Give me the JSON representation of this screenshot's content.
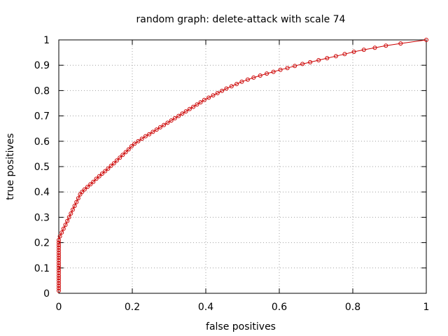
{
  "chart_data": {
    "type": "line",
    "title": "random graph: delete-attack with scale 74",
    "xlabel": "false positives",
    "ylabel": "true positives",
    "xlim": [
      0,
      1
    ],
    "ylim": [
      0,
      1
    ],
    "grid": true,
    "x_ticks": [
      0,
      0.2,
      0.4,
      0.6,
      0.8,
      1
    ],
    "y_ticks": [
      0,
      0.1,
      0.2,
      0.3,
      0.4,
      0.5,
      0.6,
      0.7,
      0.8,
      0.9,
      1
    ],
    "x_tick_labels": [
      "0",
      "0.2",
      "0.4",
      "0.6",
      "0.8",
      "1"
    ],
    "y_tick_labels": [
      "0",
      "0.1",
      "0.2",
      "0.3",
      "0.4",
      "0.5",
      "0.6",
      "0.7",
      "0.8",
      "0.9",
      "1"
    ],
    "series": [
      {
        "color": "#cc0000",
        "marker": "circle",
        "points": [
          [
            0,
            0.01
          ],
          [
            0,
            0.02
          ],
          [
            0,
            0.03
          ],
          [
            0,
            0.04
          ],
          [
            0,
            0.05
          ],
          [
            0,
            0.06
          ],
          [
            0,
            0.07
          ],
          [
            0,
            0.08
          ],
          [
            0,
            0.09
          ],
          [
            0,
            0.1
          ],
          [
            0,
            0.11
          ],
          [
            0,
            0.12
          ],
          [
            0,
            0.13
          ],
          [
            0,
            0.14
          ],
          [
            0,
            0.15
          ],
          [
            0,
            0.16
          ],
          [
            0,
            0.17
          ],
          [
            0,
            0.18
          ],
          [
            0,
            0.19
          ],
          [
            0,
            0.2
          ],
          [
            0,
            0.21
          ],
          [
            0.003,
            0.225
          ],
          [
            0.008,
            0.24
          ],
          [
            0.013,
            0.255
          ],
          [
            0.018,
            0.27
          ],
          [
            0.023,
            0.285
          ],
          [
            0.028,
            0.3
          ],
          [
            0.033,
            0.315
          ],
          [
            0.038,
            0.33
          ],
          [
            0.043,
            0.345
          ],
          [
            0.048,
            0.36
          ],
          [
            0.053,
            0.375
          ],
          [
            0.058,
            0.39
          ],
          [
            0.063,
            0.4
          ],
          [
            0.07,
            0.41
          ],
          [
            0.078,
            0.42
          ],
          [
            0.086,
            0.43
          ],
          [
            0.094,
            0.44
          ],
          [
            0.102,
            0.452
          ],
          [
            0.11,
            0.462
          ],
          [
            0.118,
            0.472
          ],
          [
            0.126,
            0.482
          ],
          [
            0.134,
            0.492
          ],
          [
            0.142,
            0.503
          ],
          [
            0.15,
            0.513
          ],
          [
            0.158,
            0.524
          ],
          [
            0.166,
            0.535
          ],
          [
            0.174,
            0.546
          ],
          [
            0.182,
            0.557
          ],
          [
            0.19,
            0.568
          ],
          [
            0.198,
            0.58
          ],
          [
            0.206,
            0.59
          ],
          [
            0.216,
            0.6
          ],
          [
            0.226,
            0.61
          ],
          [
            0.236,
            0.62
          ],
          [
            0.246,
            0.628
          ],
          [
            0.256,
            0.637
          ],
          [
            0.266,
            0.646
          ],
          [
            0.276,
            0.655
          ],
          [
            0.286,
            0.664
          ],
          [
            0.296,
            0.673
          ],
          [
            0.306,
            0.682
          ],
          [
            0.316,
            0.691
          ],
          [
            0.326,
            0.7
          ],
          [
            0.336,
            0.709
          ],
          [
            0.346,
            0.718
          ],
          [
            0.356,
            0.727
          ],
          [
            0.366,
            0.736
          ],
          [
            0.376,
            0.745
          ],
          [
            0.386,
            0.754
          ],
          [
            0.396,
            0.763
          ],
          [
            0.408,
            0.772
          ],
          [
            0.42,
            0.781
          ],
          [
            0.432,
            0.79
          ],
          [
            0.444,
            0.799
          ],
          [
            0.456,
            0.808
          ],
          [
            0.47,
            0.817
          ],
          [
            0.484,
            0.826
          ],
          [
            0.498,
            0.835
          ],
          [
            0.514,
            0.843
          ],
          [
            0.53,
            0.851
          ],
          [
            0.548,
            0.859
          ],
          [
            0.566,
            0.867
          ],
          [
            0.584,
            0.874
          ],
          [
            0.603,
            0.882
          ],
          [
            0.622,
            0.889
          ],
          [
            0.642,
            0.897
          ],
          [
            0.663,
            0.905
          ],
          [
            0.684,
            0.912
          ],
          [
            0.707,
            0.92
          ],
          [
            0.73,
            0.928
          ],
          [
            0.754,
            0.936
          ],
          [
            0.778,
            0.944
          ],
          [
            0.803,
            0.953
          ],
          [
            0.83,
            0.961
          ],
          [
            0.86,
            0.969
          ],
          [
            0.89,
            0.977
          ],
          [
            0.93,
            0.986
          ],
          [
            1.0,
            1.0
          ]
        ]
      }
    ]
  }
}
